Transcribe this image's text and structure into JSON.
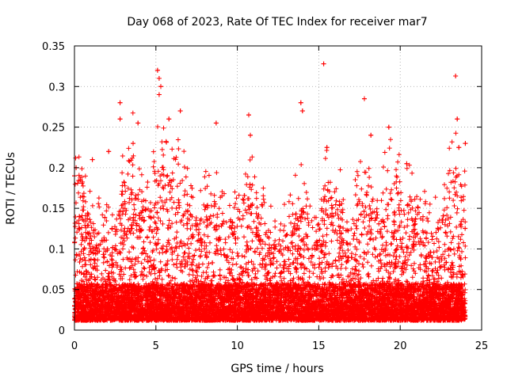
{
  "chart_data": {
    "type": "scatter",
    "title": "Day 068 of 2023, Rate Of TEC Index for receiver mar7",
    "xlabel": "GPS time / hours",
    "ylabel": "ROTI / TECUs",
    "xlim": [
      0,
      25
    ],
    "ylim": [
      0,
      0.35
    ],
    "grid": true,
    "marker": "+",
    "series_color": "#ff0000",
    "xticks": [
      "0",
      "5",
      "10",
      "15",
      "20",
      "25"
    ],
    "yticks": [
      "0",
      "0.05",
      "0.1",
      "0.15",
      "0.2",
      "0.25",
      "0.3",
      "0.35"
    ],
    "series": [
      {
        "name": "ROTI",
        "x_range": [
          0,
          24
        ],
        "sample_points": [
          {
            "x": 0.0,
            "y": 0.19
          },
          {
            "x": 0.1,
            "y": 0.2
          },
          {
            "x": 0.3,
            "y": 0.14
          },
          {
            "x": 1.1,
            "y": 0.21
          },
          {
            "x": 2.1,
            "y": 0.22
          },
          {
            "x": 2.8,
            "y": 0.28
          },
          {
            "x": 2.8,
            "y": 0.26
          },
          {
            "x": 3.6,
            "y": 0.23
          },
          {
            "x": 3.9,
            "y": 0.255
          },
          {
            "x": 5.1,
            "y": 0.32
          },
          {
            "x": 5.2,
            "y": 0.31
          },
          {
            "x": 5.2,
            "y": 0.29
          },
          {
            "x": 5.3,
            "y": 0.3
          },
          {
            "x": 5.8,
            "y": 0.26
          },
          {
            "x": 6.5,
            "y": 0.27
          },
          {
            "x": 8.7,
            "y": 0.255
          },
          {
            "x": 10.7,
            "y": 0.265
          },
          {
            "x": 10.8,
            "y": 0.24
          },
          {
            "x": 13.9,
            "y": 0.28
          },
          {
            "x": 14.0,
            "y": 0.27
          },
          {
            "x": 15.3,
            "y": 0.328
          },
          {
            "x": 15.5,
            "y": 0.225
          },
          {
            "x": 17.8,
            "y": 0.285
          },
          {
            "x": 18.2,
            "y": 0.24
          },
          {
            "x": 19.3,
            "y": 0.25
          },
          {
            "x": 20.4,
            "y": 0.205
          },
          {
            "x": 23.4,
            "y": 0.313
          },
          {
            "x": 23.5,
            "y": 0.26
          },
          {
            "x": 23.6,
            "y": 0.225
          },
          {
            "x": 24.0,
            "y": 0.23
          }
        ],
        "point_density_per_hour": 700
      }
    ]
  }
}
